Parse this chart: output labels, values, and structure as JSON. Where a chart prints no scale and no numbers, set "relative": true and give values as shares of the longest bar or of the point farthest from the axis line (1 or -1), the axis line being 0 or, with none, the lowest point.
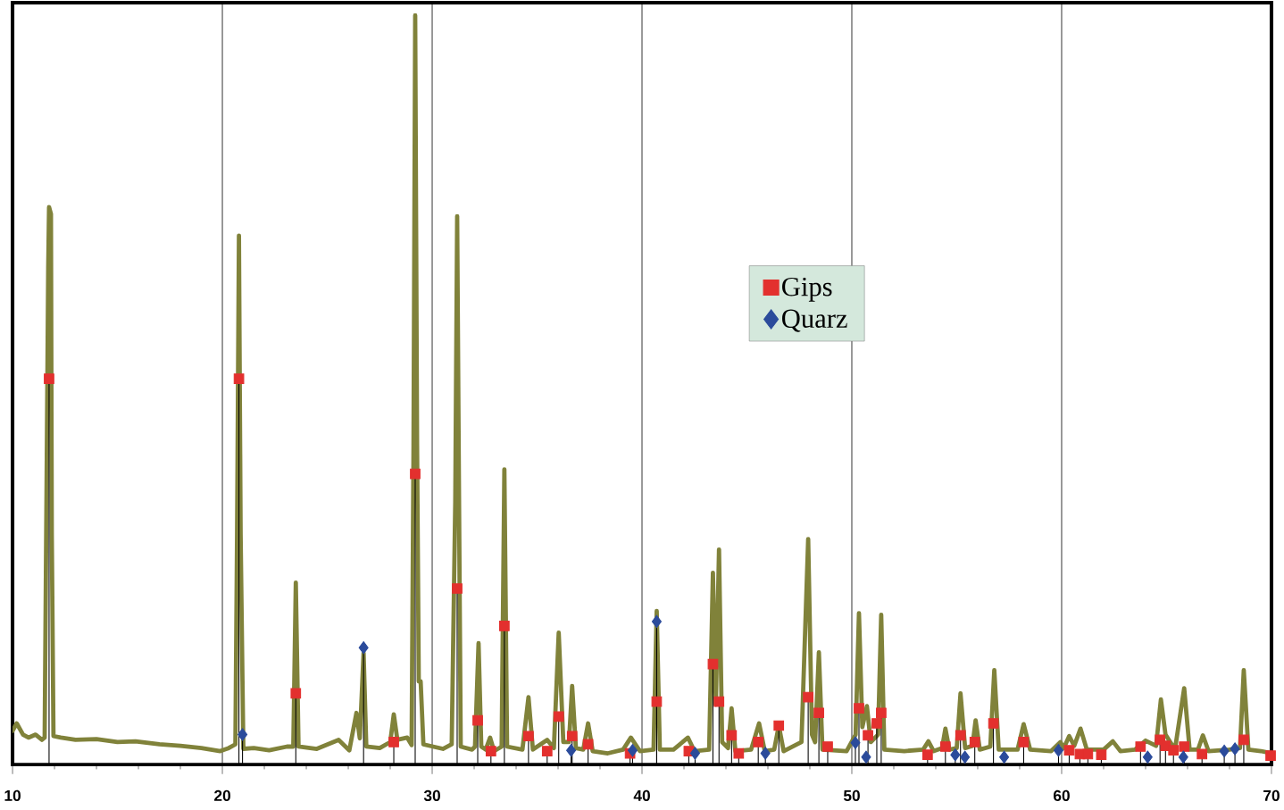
{
  "chart_data": {
    "type": "line",
    "relative": true,
    "grid": "x",
    "legend": "right",
    "xlim": [
      10,
      70
    ],
    "xticks": [
      10,
      20,
      30,
      40,
      50,
      60,
      70
    ],
    "series": [
      {
        "color": "#80823a",
        "marker": "none",
        "x": [
          10.0,
          10.2,
          10.5,
          10.76,
          11.1,
          11.4,
          11.53,
          11.7,
          11.74,
          11.83,
          11.87,
          11.95,
          12.3,
          13.0,
          14.0,
          15.0,
          15.86,
          17.0,
          18.0,
          19.0,
          19.9,
          20.3,
          20.62,
          20.7,
          20.79,
          20.87,
          21.0,
          21.5,
          22.23,
          23.08,
          23.38,
          23.5,
          23.63,
          24.5,
          25.54,
          26.05,
          26.39,
          26.55,
          26.73,
          26.86,
          27.5,
          28.0,
          28.17,
          28.34,
          28.81,
          29.02,
          29.11,
          29.19,
          29.28,
          29.36,
          29.45,
          29.58,
          30.51,
          30.93,
          31.1,
          31.19,
          31.28,
          31.36,
          31.9,
          32.04,
          32.21,
          32.34,
          32.55,
          32.76,
          32.95,
          33.31,
          33.44,
          33.57,
          34.3,
          34.59,
          34.8,
          35.48,
          35.8,
          36.03,
          36.25,
          36.52,
          36.67,
          36.85,
          37.2,
          37.43,
          37.65,
          38.37,
          39.1,
          39.47,
          39.9,
          40.55,
          40.7,
          40.85,
          41.5,
          42.19,
          42.5,
          43.2,
          43.38,
          43.52,
          43.67,
          43.82,
          44.1,
          44.27,
          44.45,
          45.2,
          45.58,
          45.85,
          46.3,
          46.52,
          46.75,
          47.6,
          47.92,
          48.1,
          48.25,
          48.43,
          48.6,
          49.75,
          50.18,
          50.34,
          50.5,
          50.72,
          50.9,
          51.25,
          51.4,
          51.55,
          52.5,
          53.4,
          53.65,
          53.9,
          54.3,
          54.46,
          54.65,
          55.0,
          55.18,
          55.4,
          55.75,
          55.9,
          56.1,
          56.6,
          56.79,
          57.0,
          57.9,
          58.19,
          58.5,
          59.5,
          59.94,
          60.1,
          60.36,
          60.6,
          60.9,
          61.2,
          62.0,
          62.44,
          62.8,
          63.5,
          64.0,
          64.5,
          64.73,
          64.95,
          65.4,
          65.84,
          66.1,
          66.5,
          66.73,
          67.0,
          68.0,
          68.5,
          68.68,
          68.9,
          69.5,
          70.0
        ],
        "values": [
          0.045,
          0.055,
          0.04,
          0.036,
          0.04,
          0.033,
          0.036,
          0.663,
          0.744,
          0.735,
          0.307,
          0.038,
          0.036,
          0.033,
          0.034,
          0.03,
          0.031,
          0.027,
          0.025,
          0.022,
          0.018,
          0.022,
          0.027,
          0.307,
          0.706,
          0.307,
          0.021,
          0.022,
          0.019,
          0.024,
          0.024,
          0.243,
          0.024,
          0.021,
          0.033,
          0.019,
          0.069,
          0.035,
          0.149,
          0.024,
          0.022,
          0.03,
          0.067,
          0.033,
          0.036,
          0.026,
          0.426,
          1.0,
          0.426,
          0.111,
          0.111,
          0.027,
          0.021,
          0.027,
          0.35,
          0.732,
          0.35,
          0.024,
          0.02,
          0.024,
          0.162,
          0.024,
          0.02,
          0.036,
          0.018,
          0.024,
          0.394,
          0.024,
          0.02,
          0.09,
          0.02,
          0.033,
          0.022,
          0.176,
          0.03,
          0.03,
          0.105,
          0.022,
          0.02,
          0.055,
          0.018,
          0.015,
          0.02,
          0.036,
          0.018,
          0.02,
          0.205,
          0.02,
          0.02,
          0.036,
          0.018,
          0.02,
          0.256,
          0.08,
          0.287,
          0.03,
          0.022,
          0.075,
          0.018,
          0.02,
          0.055,
          0.018,
          0.02,
          0.052,
          0.018,
          0.03,
          0.301,
          0.04,
          0.03,
          0.15,
          0.02,
          0.018,
          0.04,
          0.202,
          0.05,
          0.078,
          0.03,
          0.04,
          0.2,
          0.02,
          0.018,
          0.02,
          0.031,
          0.018,
          0.022,
          0.048,
          0.02,
          0.022,
          0.095,
          0.022,
          0.025,
          0.059,
          0.02,
          0.024,
          0.126,
          0.02,
          0.02,
          0.054,
          0.02,
          0.018,
          0.03,
          0.022,
          0.038,
          0.025,
          0.048,
          0.02,
          0.02,
          0.031,
          0.018,
          0.02,
          0.032,
          0.025,
          0.087,
          0.04,
          0.02,
          0.102,
          0.02,
          0.02,
          0.039,
          0.018,
          0.02,
          0.022,
          0.126,
          0.02,
          0.018,
          0.015
        ]
      },
      {
        "type": "lollipop",
        "name": "Gips",
        "color": "#e3302e",
        "marker": "square",
        "x": [
          11.74,
          20.79,
          23.5,
          28.17,
          29.19,
          31.19,
          32.17,
          32.8,
          33.44,
          34.59,
          35.48,
          36.03,
          36.67,
          37.43,
          39.43,
          40.7,
          42.23,
          43.38,
          43.67,
          44.27,
          44.61,
          45.54,
          46.52,
          47.92,
          48.43,
          48.85,
          50.34,
          50.77,
          51.19,
          51.4,
          53.61,
          54.46,
          55.18,
          55.86,
          56.75,
          58.19,
          60.36,
          60.87,
          61.25,
          61.89,
          63.76,
          64.69,
          64.95,
          65.33,
          65.84,
          66.69,
          68.68,
          69.96
        ],
        "values": [
          0.515,
          0.515,
          0.095,
          0.03,
          0.388,
          0.235,
          0.059,
          0.018,
          0.185,
          0.038,
          0.018,
          0.064,
          0.038,
          0.027,
          0.015,
          0.084,
          0.018,
          0.134,
          0.084,
          0.039,
          0.015,
          0.03,
          0.052,
          0.09,
          0.069,
          0.024,
          0.075,
          0.039,
          0.055,
          0.069,
          0.013,
          0.024,
          0.039,
          0.03,
          0.055,
          0.03,
          0.019,
          0.014,
          0.014,
          0.013,
          0.024,
          0.033,
          0.025,
          0.019,
          0.024,
          0.014,
          0.033,
          0.012
        ]
      },
      {
        "type": "lollipop",
        "name": "Quarz",
        "color": "#2b4b9b",
        "marker": "diamond",
        "x": [
          20.96,
          26.73,
          36.62,
          39.55,
          40.7,
          42.53,
          45.88,
          50.17,
          50.68,
          54.93,
          55.39,
          57.26,
          59.85,
          64.1,
          65.8,
          67.75,
          68.26
        ],
        "values": [
          0.04,
          0.156,
          0.019,
          0.019,
          0.191,
          0.015,
          0.015,
          0.029,
          0.01,
          0.013,
          0.01,
          0.01,
          0.019,
          0.01,
          0.01,
          0.018,
          0.021
        ]
      }
    ]
  }
}
